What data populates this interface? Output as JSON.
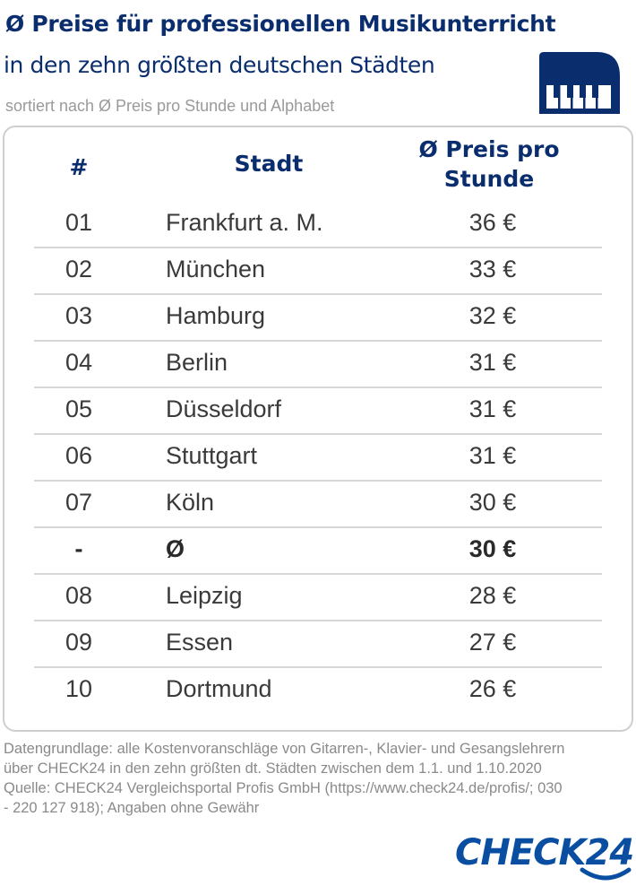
{
  "header": {
    "title": "Ø Preise für professionellen Musikunterricht",
    "subtitle": "in den zehn größten deutschen Städten",
    "sort_note": "sortiert nach Ø Preis pro Stunde und Alphabet",
    "icon": "piano-icon",
    "accent_color": "#0a2d6e"
  },
  "table": {
    "headers": {
      "rank": "#",
      "city": "Stadt",
      "price_line1": "Ø Preis pro",
      "price_line2": "Stunde"
    },
    "rows": [
      {
        "rank": "01",
        "city": "Frankfurt a. M.",
        "price": "36 €"
      },
      {
        "rank": "02",
        "city": "München",
        "price": "33 €"
      },
      {
        "rank": "03",
        "city": "Hamburg",
        "price": "32 €"
      },
      {
        "rank": "04",
        "city": "Berlin",
        "price": "31 €"
      },
      {
        "rank": "05",
        "city": "Düsseldorf",
        "price": "31 €"
      },
      {
        "rank": "06",
        "city": "Stuttgart",
        "price": "31 €"
      },
      {
        "rank": "07",
        "city": "Köln",
        "price": "30 €"
      },
      {
        "rank": "-",
        "city": "Ø",
        "price": "30 €",
        "bold": true
      },
      {
        "rank": "08",
        "city": "Leipzig",
        "price": "28 €"
      },
      {
        "rank": "09",
        "city": "Essen",
        "price": "27 €"
      },
      {
        "rank": "10",
        "city": "Dortmund",
        "price": "26 €"
      }
    ]
  },
  "footer": {
    "line1": "Datengrundlage: alle Kostenvoranschläge von Gitarren-, Klavier- und Gesangslehrern",
    "line2": "über CHECK24 in den zehn größten dt. Städten zwischen dem 1.1. und 1.10.2020",
    "line3": "Quelle: CHECK24 Vergleichsportal Profis GmbH (https://www.check24.de/profis/;  030",
    "line4": "- 220 127 918); Angaben ohne Gewähr"
  },
  "brand": {
    "logo_text": "CHECK24",
    "logo_color": "#0a4ea2"
  }
}
